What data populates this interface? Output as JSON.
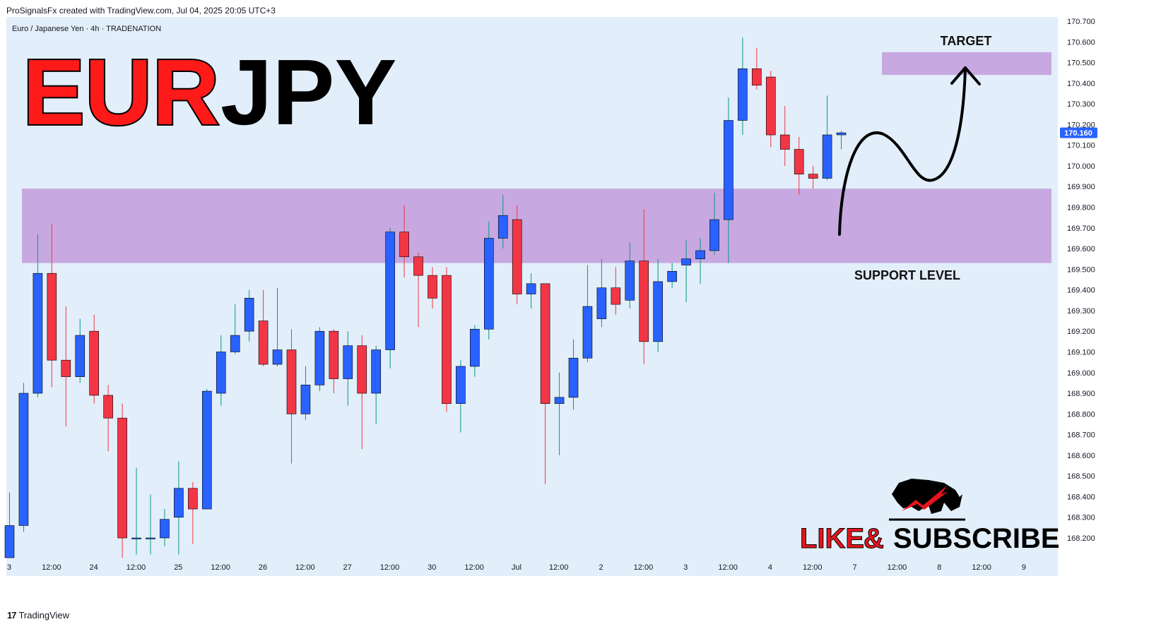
{
  "header": {
    "credit": "ProSignalsFx created with TradingView.com, Jul 04, 2025 20:05 UTC+3"
  },
  "footer": {
    "brand": "TradingView",
    "brand_icon": "tradingview-logo-icon"
  },
  "overlay": {
    "big_title_red": "EUR",
    "big_title_black": "JPY",
    "target_label": "TARGET",
    "support_label": "SUPPORT LEVEL",
    "cta_like": "LIKE",
    "cta_amp": "&",
    "cta_subscribe": "SUBSCRIBE",
    "cta_icon": "bull-icon"
  },
  "colors": {
    "background": "#e2eef9",
    "up": "#2962ff",
    "down": "#f23645",
    "wick_up": "#089981",
    "wick_down": "#f23645",
    "zone": "#c8a8e0",
    "price_badge": "#2962ff"
  },
  "chart_data": {
    "type": "candlestick",
    "title": "Euro / Japanese Yen · 4h · TRADENATION",
    "last_price": "170.160",
    "ylim": [
      168.1,
      170.7
    ],
    "y_ticks": [
      "170.700",
      "170.600",
      "170.500",
      "170.400",
      "170.300",
      "170.200",
      "170.100",
      "170.000",
      "169.900",
      "169.800",
      "169.700",
      "169.600",
      "169.500",
      "169.400",
      "169.300",
      "169.200",
      "169.100",
      "169.000",
      "168.900",
      "168.800",
      "168.700",
      "168.600",
      "168.500",
      "168.400",
      "168.300",
      "168.200"
    ],
    "x_ticks": [
      "3",
      "12:00",
      "24",
      "12:00",
      "25",
      "12:00",
      "26",
      "12:00",
      "27",
      "12:00",
      "30",
      "12:00",
      "Jul",
      "12:00",
      "2",
      "12:00",
      "3",
      "12:00",
      "4",
      "12:00",
      "7",
      "12:00",
      "8",
      "12:00",
      "9"
    ],
    "support_zone": [
      169.53,
      169.89
    ],
    "target_zone": [
      170.44,
      170.55
    ],
    "candles": [
      [
        168.1,
        168.26,
        168.05,
        168.42
      ],
      [
        168.26,
        168.9,
        168.23,
        168.95
      ],
      [
        168.9,
        169.48,
        168.88,
        169.67
      ],
      [
        169.48,
        169.06,
        168.93,
        169.72
      ],
      [
        169.06,
        168.98,
        168.74,
        169.32
      ],
      [
        168.98,
        169.18,
        168.95,
        169.26
      ],
      [
        169.2,
        168.89,
        168.85,
        169.28
      ],
      [
        168.89,
        168.78,
        168.62,
        168.94
      ],
      [
        168.78,
        168.2,
        168.1,
        168.85
      ],
      [
        168.2,
        168.2,
        168.12,
        168.54
      ],
      [
        168.2,
        168.2,
        168.12,
        168.41
      ],
      [
        168.2,
        168.29,
        168.16,
        168.34
      ],
      [
        168.3,
        168.44,
        168.12,
        168.57
      ],
      [
        168.44,
        168.34,
        168.17,
        168.47
      ],
      [
        168.34,
        168.91,
        168.34,
        168.92
      ],
      [
        168.9,
        169.1,
        168.84,
        169.18
      ],
      [
        169.1,
        169.18,
        169.09,
        169.33
      ],
      [
        169.2,
        169.36,
        169.15,
        169.4
      ],
      [
        169.25,
        169.04,
        169.03,
        169.4
      ],
      [
        169.04,
        169.11,
        169.03,
        169.41
      ],
      [
        169.11,
        168.8,
        168.56,
        169.21
      ],
      [
        168.8,
        168.94,
        168.77,
        169.03
      ],
      [
        168.94,
        169.2,
        168.91,
        169.22
      ],
      [
        169.2,
        168.97,
        168.9,
        169.21
      ],
      [
        168.97,
        169.13,
        168.84,
        169.2
      ],
      [
        169.13,
        168.9,
        168.63,
        169.18
      ],
      [
        168.9,
        169.11,
        168.75,
        169.13
      ],
      [
        169.11,
        169.68,
        169.02,
        169.7
      ],
      [
        169.68,
        169.56,
        169.46,
        169.81
      ],
      [
        169.56,
        169.47,
        169.22,
        169.58
      ],
      [
        169.47,
        169.36,
        169.31,
        169.51
      ],
      [
        169.47,
        168.85,
        168.81,
        169.51
      ],
      [
        168.85,
        169.03,
        168.71,
        169.06
      ],
      [
        169.03,
        169.21,
        168.98,
        169.23
      ],
      [
        169.21,
        169.65,
        169.16,
        169.73
      ],
      [
        169.65,
        169.76,
        169.6,
        169.86
      ],
      [
        169.74,
        169.38,
        169.33,
        169.81
      ],
      [
        169.38,
        169.43,
        169.31,
        169.48
      ],
      [
        169.43,
        168.85,
        168.46,
        169.43
      ],
      [
        168.85,
        168.88,
        168.6,
        169.0
      ],
      [
        168.88,
        169.07,
        168.82,
        169.16
      ],
      [
        169.07,
        169.32,
        169.05,
        169.52
      ],
      [
        169.26,
        169.41,
        169.22,
        169.55
      ],
      [
        169.41,
        169.33,
        169.28,
        169.51
      ],
      [
        169.35,
        169.54,
        169.31,
        169.63
      ],
      [
        169.54,
        169.15,
        169.04,
        169.79
      ],
      [
        169.15,
        169.44,
        169.1,
        169.55
      ],
      [
        169.44,
        169.49,
        169.41,
        169.53
      ],
      [
        169.52,
        169.55,
        169.34,
        169.64
      ],
      [
        169.55,
        169.59,
        169.43,
        169.65
      ],
      [
        169.59,
        169.74,
        169.57,
        169.87
      ],
      [
        169.74,
        170.22,
        169.53,
        170.33
      ],
      [
        170.22,
        170.47,
        170.15,
        170.62
      ],
      [
        170.47,
        170.39,
        170.37,
        170.57
      ],
      [
        170.43,
        170.15,
        170.09,
        170.46
      ],
      [
        170.15,
        170.08,
        170.0,
        170.29
      ],
      [
        170.08,
        169.96,
        169.86,
        170.14
      ],
      [
        169.96,
        169.94,
        169.89,
        170.0
      ],
      [
        169.94,
        170.15,
        169.93,
        170.34
      ],
      [
        170.15,
        170.16,
        170.08,
        170.17
      ]
    ]
  }
}
